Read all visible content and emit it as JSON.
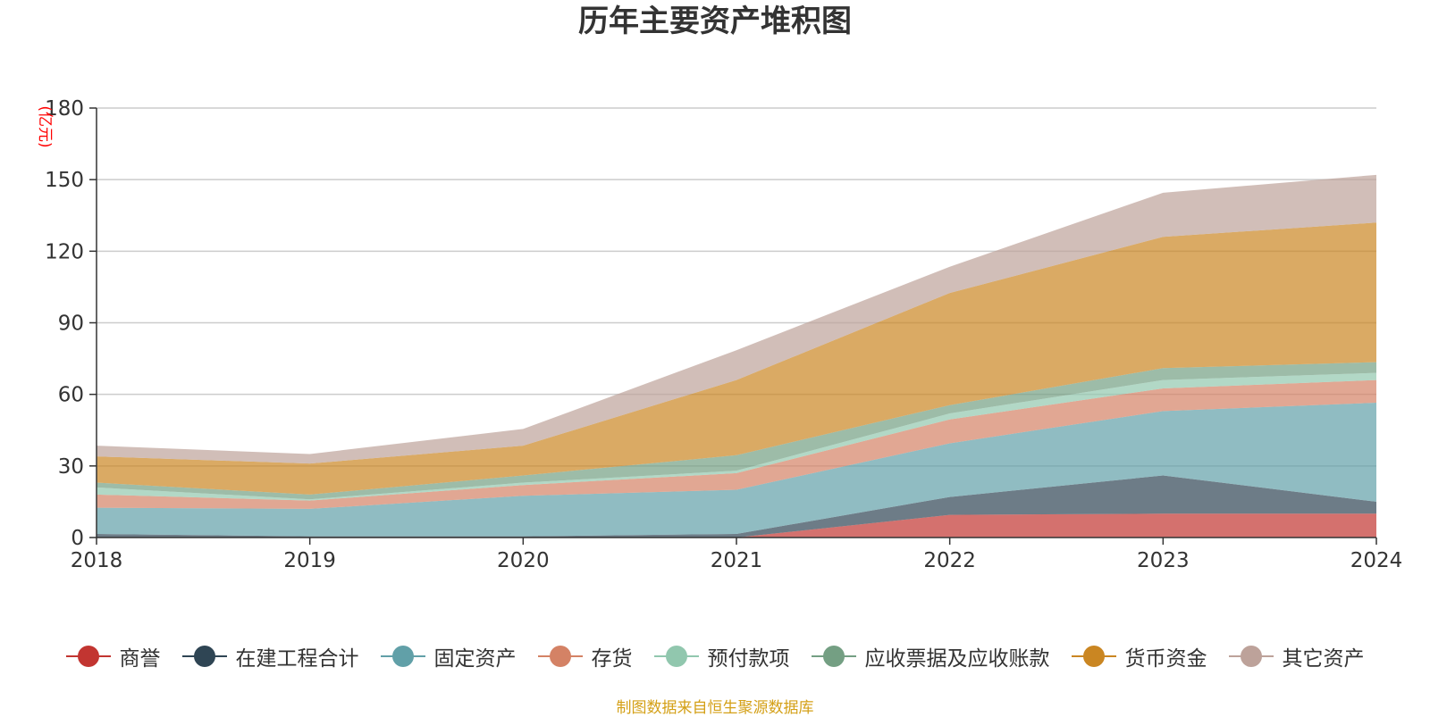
{
  "chart_data": {
    "type": "area",
    "stacked": true,
    "title": "历年主要资产堆积图",
    "unit_label": "(亿元)",
    "x": [
      "2018",
      "2019",
      "2020",
      "2021",
      "2022",
      "2023",
      "2024"
    ],
    "ylim": [
      0,
      180
    ],
    "yticks": [
      0,
      30,
      60,
      90,
      120,
      150,
      180
    ],
    "grid": true,
    "legend_position": "bottom",
    "series": [
      {
        "name": "商誉",
        "values": [
          0,
          0,
          0,
          0,
          9.5,
          10,
          10
        ],
        "color": "#c23531"
      },
      {
        "name": "在建工程合计",
        "values": [
          1.5,
          0.5,
          0.5,
          1.5,
          7.5,
          16,
          5
        ],
        "color": "#2f4554"
      },
      {
        "name": "固定资产",
        "values": [
          11,
          11.5,
          17,
          18.5,
          22.5,
          27,
          41.5
        ],
        "color": "#61a0a8"
      },
      {
        "name": "存货",
        "values": [
          5.5,
          3.5,
          4.5,
          7,
          10,
          9.5,
          9.5
        ],
        "color": "#d48265"
      },
      {
        "name": "预付款项",
        "values": [
          3,
          0.5,
          1,
          1,
          2.5,
          3.5,
          3
        ],
        "color": "#91c7ae"
      },
      {
        "name": "应收票据及应收账款",
        "values": [
          2,
          2,
          3,
          6.5,
          3.5,
          5,
          4.5
        ],
        "color": "#749f83"
      },
      {
        "name": "货币资金",
        "values": [
          11,
          13,
          12.5,
          31.5,
          47,
          55,
          58.5
        ],
        "color": "#ca8622"
      },
      {
        "name": "其它资产",
        "values": [
          4.5,
          4,
          7,
          12.5,
          11,
          18.5,
          20
        ],
        "color": "#bda29a"
      }
    ]
  },
  "source_note": "制图数据来自恒生聚源数据库"
}
